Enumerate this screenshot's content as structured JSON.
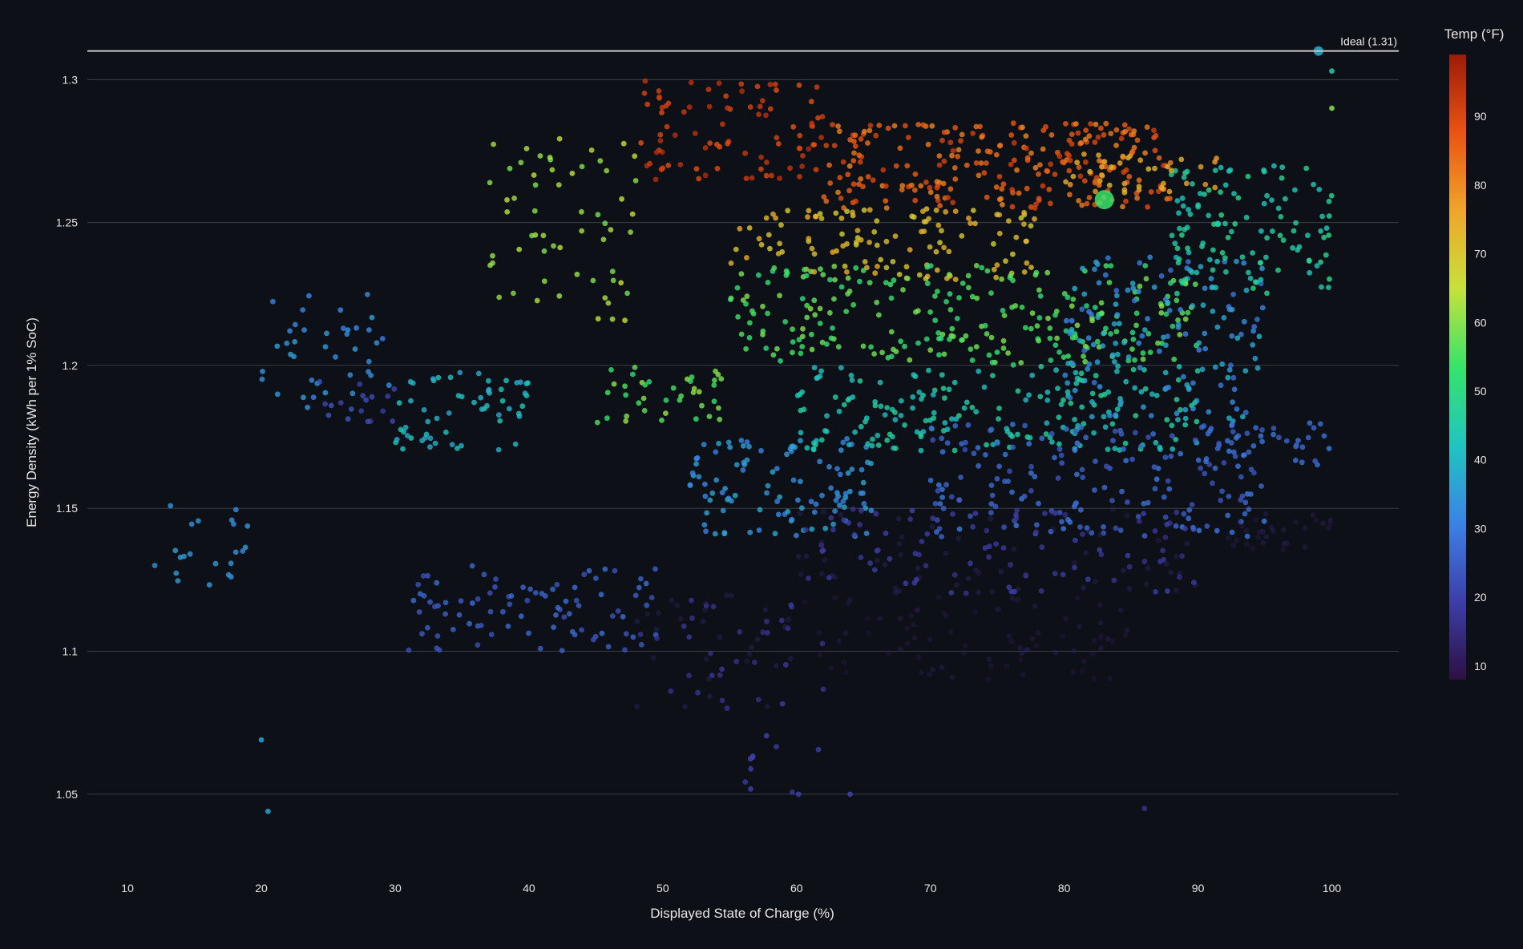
{
  "chart_data": {
    "type": "scatter",
    "xlabel": "Displayed State of Charge (%)",
    "ylabel": "Energy Density (kWh per 1% SoC)",
    "xlim": [
      7,
      105
    ],
    "ylim": [
      1.025,
      1.32
    ],
    "x_ticks": [
      10,
      20,
      30,
      40,
      50,
      60,
      70,
      80,
      90,
      100
    ],
    "y_ticks": [
      1.05,
      1.1,
      1.15,
      1.2,
      1.25,
      1.3
    ],
    "grid": true,
    "reference_line": {
      "label": "Ideal (1.31)",
      "y": 1.31
    },
    "colorbar": {
      "title": "Temp (°F)",
      "range": [
        8,
        99
      ],
      "ticks": [
        10,
        20,
        30,
        40,
        50,
        60,
        70,
        80,
        90
      ],
      "colors": [
        "#2d0f44",
        "#3d3ea8",
        "#3b82e6",
        "#1fc5c0",
        "#36e36a",
        "#c6e23a",
        "#f0a52a",
        "#ea5314",
        "#9c1b09"
      ]
    },
    "clusters": [
      {
        "x": [
          12,
          19
        ],
        "y": [
          1.12,
          1.155
        ],
        "temp": [
          32,
          36
        ],
        "n": 22
      },
      {
        "x": [
          20,
          30
        ],
        "y": [
          1.185,
          1.225
        ],
        "temp": [
          30,
          36
        ],
        "n": 40
      },
      {
        "x": [
          22,
          30
        ],
        "y": [
          1.18,
          1.195
        ],
        "temp": [
          18,
          24
        ],
        "n": 18
      },
      {
        "x": [
          30,
          40
        ],
        "y": [
          1.17,
          1.2
        ],
        "temp": [
          36,
          44
        ],
        "n": 60
      },
      {
        "x": [
          37,
          48
        ],
        "y": [
          1.215,
          1.28
        ],
        "temp": [
          58,
          66
        ],
        "n": 60
      },
      {
        "x": [
          45,
          55
        ],
        "y": [
          1.18,
          1.2
        ],
        "temp": [
          50,
          62
        ],
        "n": 40
      },
      {
        "x": [
          31,
          50
        ],
        "y": [
          1.1,
          1.13
        ],
        "temp": [
          22,
          28
        ],
        "n": 90
      },
      {
        "x": [
          52,
          66
        ],
        "y": [
          1.14,
          1.175
        ],
        "temp": [
          30,
          38
        ],
        "n": 110
      },
      {
        "x": [
          48,
          62
        ],
        "y": [
          1.08,
          1.12
        ],
        "temp": [
          12,
          18
        ],
        "n": 60
      },
      {
        "x": [
          48,
          62
        ],
        "y": [
          1.265,
          1.3
        ],
        "temp": [
          88,
          96
        ],
        "n": 90
      },
      {
        "x": [
          62,
          88
        ],
        "y": [
          1.255,
          1.285
        ],
        "temp": [
          80,
          92
        ],
        "n": 260
      },
      {
        "x": [
          55,
          78
        ],
        "y": [
          1.23,
          1.255
        ],
        "temp": [
          68,
          76
        ],
        "n": 120
      },
      {
        "x": [
          55,
          90
        ],
        "y": [
          1.2,
          1.235
        ],
        "temp": [
          50,
          60
        ],
        "n": 260
      },
      {
        "x": [
          60,
          90
        ],
        "y": [
          1.17,
          1.2
        ],
        "temp": [
          40,
          48
        ],
        "n": 200
      },
      {
        "x": [
          70,
          95
        ],
        "y": [
          1.14,
          1.18
        ],
        "temp": [
          22,
          30
        ],
        "n": 180
      },
      {
        "x": [
          80,
          95
        ],
        "y": [
          1.18,
          1.24
        ],
        "temp": [
          28,
          40
        ],
        "n": 150
      },
      {
        "x": [
          88,
          100
        ],
        "y": [
          1.225,
          1.27
        ],
        "temp": [
          42,
          50
        ],
        "n": 120
      },
      {
        "x": [
          60,
          90
        ],
        "y": [
          1.12,
          1.15
        ],
        "temp": [
          12,
          20
        ],
        "n": 150
      },
      {
        "x": [
          60,
          85
        ],
        "y": [
          1.09,
          1.12
        ],
        "temp": [
          9,
          13
        ],
        "n": 80
      },
      {
        "x": [
          90,
          100
        ],
        "y": [
          1.165,
          1.18
        ],
        "temp": [
          24,
          30
        ],
        "n": 40
      },
      {
        "x": [
          92,
          100
        ],
        "y": [
          1.135,
          1.15
        ],
        "temp": [
          10,
          14
        ],
        "n": 30
      },
      {
        "x": [
          56,
          62
        ],
        "y": [
          1.05,
          1.085
        ],
        "temp": [
          18,
          22
        ],
        "n": 12
      },
      {
        "x": [
          80,
          92
        ],
        "y": [
          1.26,
          1.275
        ],
        "temp": [
          72,
          78
        ],
        "n": 40
      }
    ],
    "outliers": [
      {
        "x": 99,
        "y": 1.31,
        "temp": 38
      },
      {
        "x": 83,
        "y": 1.258,
        "temp": 54
      },
      {
        "x": 20,
        "y": 1.069,
        "temp": 36
      },
      {
        "x": 20.5,
        "y": 1.044,
        "temp": 36
      },
      {
        "x": 64,
        "y": 1.05,
        "temp": 20
      },
      {
        "x": 86,
        "y": 1.045,
        "temp": 16
      },
      {
        "x": 100,
        "y": 1.303,
        "temp": 44
      },
      {
        "x": 100,
        "y": 1.29,
        "temp": 60
      }
    ]
  }
}
